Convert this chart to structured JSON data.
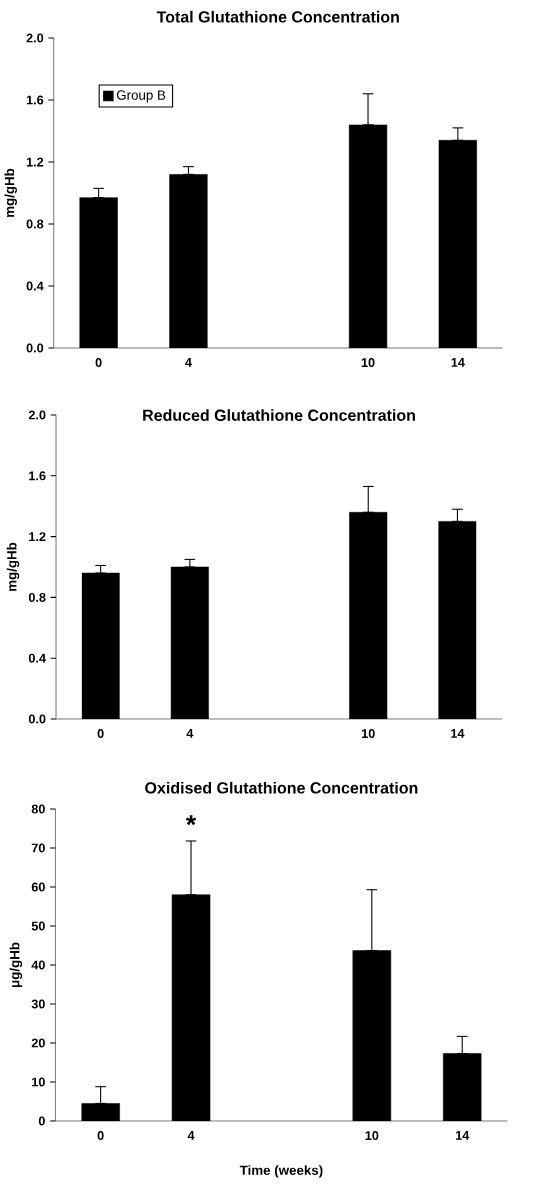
{
  "chart_data": [
    {
      "type": "bar",
      "title": "Total Glutathione Concentration",
      "ylabel": "mg/gHb",
      "categories": [
        "0",
        "4",
        null,
        "10",
        "14"
      ],
      "series": [
        {
          "name": "Group B",
          "color": "#000000",
          "values": [
            0.97,
            1.12,
            null,
            1.44,
            1.34
          ],
          "errors": [
            [
              0.97,
              1.03
            ],
            [
              1.12,
              1.17
            ],
            null,
            [
              1.44,
              1.64
            ],
            [
              1.34,
              1.42
            ]
          ]
        }
      ],
      "ylim": [
        0,
        2.0
      ],
      "yticks": [
        {
          "value": 0,
          "label": "0.0"
        },
        {
          "value": 0.4,
          "label": "0.4"
        },
        {
          "value": 0.8,
          "label": "0.8"
        },
        {
          "value": 1.2,
          "label": "1.2"
        },
        {
          "value": 1.6,
          "label": "1.6"
        },
        {
          "value": 2.0,
          "label": "2.0"
        }
      ],
      "legend": "top left"
    },
    {
      "type": "bar",
      "title": "Reduced Glutathione Concentration",
      "ylabel": "mg/gHb",
      "categories": [
        "0",
        "4",
        null,
        "10",
        "14"
      ],
      "series": [
        {
          "color": "#000000",
          "values": [
            0.96,
            1.0,
            null,
            1.36,
            1.3
          ],
          "errors": [
            [
              0.96,
              1.01
            ],
            [
              1.0,
              1.05
            ],
            null,
            [
              1.36,
              1.53
            ],
            [
              1.3,
              1.38
            ]
          ]
        }
      ],
      "ylim": [
        0,
        2.0
      ],
      "yticks": [
        {
          "value": 0,
          "label": "0.0"
        },
        {
          "value": 0.4,
          "label": "0.4"
        },
        {
          "value": 0.8,
          "label": "0.8"
        },
        {
          "value": 1.2,
          "label": "1.2"
        },
        {
          "value": 1.6,
          "label": "1.6"
        },
        {
          "value": 2.0,
          "label": "2.0"
        }
      ]
    },
    {
      "type": "bar",
      "title": "Oxidised Glutathione Concentration",
      "ylabel": "μg/gHb",
      "xlabel": "Time (weeks)",
      "categories": [
        "0",
        "4",
        null,
        "10",
        "14"
      ],
      "series": [
        {
          "color": "#000000",
          "values": [
            4.5,
            58,
            null,
            43.7,
            17.3
          ],
          "errors": [
            [
              4.5,
              8.8
            ],
            [
              58,
              71.8
            ],
            null,
            [
              43.7,
              59.3
            ],
            [
              17.3,
              21.7
            ]
          ]
        }
      ],
      "ylim": [
        0,
        80
      ],
      "yticks": [
        0,
        10,
        20,
        30,
        40,
        50,
        60,
        70,
        80
      ],
      "annotations": [
        "*"
      ]
    }
  ]
}
